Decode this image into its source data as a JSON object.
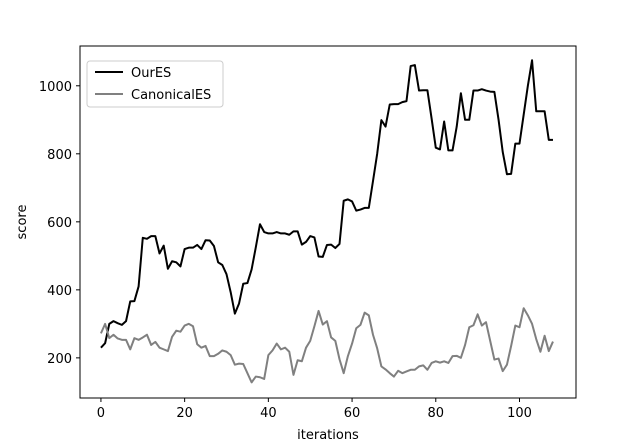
{
  "chart_data": {
    "type": "line",
    "xlabel": "iterations",
    "ylabel": "score",
    "xlim": [
      -5,
      113.5
    ],
    "ylim": [
      82,
      1117
    ],
    "xticks": [
      0,
      20,
      40,
      60,
      80,
      100
    ],
    "yticks": [
      200,
      400,
      600,
      800,
      1000
    ],
    "grid": false,
    "legend_position": "upper-left",
    "series": [
      {
        "name": "OurES",
        "color": "#000000",
        "points": [
          [
            0,
            230
          ],
          [
            1,
            243
          ],
          [
            2,
            300
          ],
          [
            3,
            308
          ],
          [
            4,
            302
          ],
          [
            5,
            297
          ],
          [
            6,
            308
          ],
          [
            7,
            366
          ],
          [
            8,
            367
          ],
          [
            9,
            410
          ],
          [
            10,
            553
          ],
          [
            11,
            550
          ],
          [
            12,
            558
          ],
          [
            13,
            558
          ],
          [
            14,
            507
          ],
          [
            15,
            530
          ],
          [
            16,
            462
          ],
          [
            17,
            484
          ],
          [
            18,
            481
          ],
          [
            19,
            469
          ],
          [
            20,
            520
          ],
          [
            21,
            524
          ],
          [
            22,
            524
          ],
          [
            23,
            532
          ],
          [
            24,
            520
          ],
          [
            25,
            546
          ],
          [
            26,
            545
          ],
          [
            27,
            529
          ],
          [
            28,
            481
          ],
          [
            29,
            473
          ],
          [
            30,
            446
          ],
          [
            31,
            393
          ],
          [
            32,
            330
          ],
          [
            33,
            360
          ],
          [
            34,
            418
          ],
          [
            35,
            420
          ],
          [
            36,
            460
          ],
          [
            37,
            525
          ],
          [
            38,
            593
          ],
          [
            39,
            570
          ],
          [
            40,
            566
          ],
          [
            41,
            566
          ],
          [
            42,
            570
          ],
          [
            43,
            566
          ],
          [
            44,
            566
          ],
          [
            45,
            562
          ],
          [
            46,
            572
          ],
          [
            47,
            572
          ],
          [
            48,
            533
          ],
          [
            49,
            541
          ],
          [
            50,
            558
          ],
          [
            51,
            554
          ],
          [
            52,
            498
          ],
          [
            53,
            497
          ],
          [
            54,
            532
          ],
          [
            55,
            533
          ],
          [
            56,
            523
          ],
          [
            57,
            535
          ],
          [
            58,
            662
          ],
          [
            59,
            666
          ],
          [
            60,
            660
          ],
          [
            61,
            633
          ],
          [
            62,
            636
          ],
          [
            63,
            641
          ],
          [
            64,
            641
          ],
          [
            65,
            720
          ],
          [
            66,
            800
          ],
          [
            67,
            899
          ],
          [
            68,
            880
          ],
          [
            69,
            945
          ],
          [
            70,
            946
          ],
          [
            71,
            946
          ],
          [
            72,
            952
          ],
          [
            73,
            955
          ],
          [
            74,
            1058
          ],
          [
            75,
            1061
          ],
          [
            76,
            986
          ],
          [
            77,
            987
          ],
          [
            78,
            987
          ],
          [
            79,
            904
          ],
          [
            80,
            818
          ],
          [
            81,
            813
          ],
          [
            82,
            895
          ],
          [
            83,
            810
          ],
          [
            84,
            810
          ],
          [
            85,
            880
          ],
          [
            86,
            978
          ],
          [
            87,
            900
          ],
          [
            88,
            900
          ],
          [
            89,
            986
          ],
          [
            90,
            986
          ],
          [
            91,
            990
          ],
          [
            92,
            986
          ],
          [
            93,
            983
          ],
          [
            94,
            982
          ],
          [
            95,
            900
          ],
          [
            96,
            805
          ],
          [
            97,
            740
          ],
          [
            98,
            741
          ],
          [
            99,
            830
          ],
          [
            100,
            830
          ],
          [
            101,
            915
          ],
          [
            102,
            1000
          ],
          [
            103,
            1075
          ],
          [
            104,
            925
          ],
          [
            105,
            925
          ],
          [
            106,
            925
          ],
          [
            107,
            841
          ],
          [
            108,
            841
          ]
        ]
      },
      {
        "name": "CanonicalES",
        "color": "#808080",
        "points": [
          [
            0,
            272
          ],
          [
            1,
            300
          ],
          [
            2,
            258
          ],
          [
            3,
            268
          ],
          [
            4,
            257
          ],
          [
            5,
            253
          ],
          [
            6,
            253
          ],
          [
            7,
            225
          ],
          [
            8,
            258
          ],
          [
            9,
            253
          ],
          [
            10,
            260
          ],
          [
            11,
            268
          ],
          [
            12,
            238
          ],
          [
            13,
            247
          ],
          [
            14,
            230
          ],
          [
            15,
            225
          ],
          [
            16,
            220
          ],
          [
            17,
            262
          ],
          [
            18,
            280
          ],
          [
            19,
            277
          ],
          [
            20,
            295
          ],
          [
            21,
            300
          ],
          [
            22,
            293
          ],
          [
            23,
            240
          ],
          [
            24,
            230
          ],
          [
            25,
            235
          ],
          [
            26,
            205
          ],
          [
            27,
            205
          ],
          [
            28,
            212
          ],
          [
            29,
            222
          ],
          [
            30,
            218
          ],
          [
            31,
            208
          ],
          [
            32,
            180
          ],
          [
            33,
            183
          ],
          [
            34,
            182
          ],
          [
            35,
            155
          ],
          [
            36,
            128
          ],
          [
            37,
            145
          ],
          [
            38,
            143
          ],
          [
            39,
            138
          ],
          [
            40,
            208
          ],
          [
            41,
            222
          ],
          [
            42,
            242
          ],
          [
            43,
            225
          ],
          [
            44,
            230
          ],
          [
            45,
            218
          ],
          [
            46,
            150
          ],
          [
            47,
            193
          ],
          [
            48,
            190
          ],
          [
            49,
            230
          ],
          [
            50,
            250
          ],
          [
            51,
            293
          ],
          [
            52,
            338
          ],
          [
            53,
            298
          ],
          [
            54,
            308
          ],
          [
            55,
            260
          ],
          [
            56,
            250
          ],
          [
            57,
            196
          ],
          [
            58,
            155
          ],
          [
            59,
            205
          ],
          [
            60,
            242
          ],
          [
            61,
            287
          ],
          [
            62,
            297
          ],
          [
            63,
            333
          ],
          [
            64,
            325
          ],
          [
            65,
            268
          ],
          [
            66,
            228
          ],
          [
            67,
            175
          ],
          [
            68,
            166
          ],
          [
            69,
            155
          ],
          [
            70,
            145
          ],
          [
            71,
            162
          ],
          [
            72,
            155
          ],
          [
            73,
            160
          ],
          [
            74,
            165
          ],
          [
            75,
            165
          ],
          [
            76,
            175
          ],
          [
            77,
            178
          ],
          [
            78,
            165
          ],
          [
            79,
            185
          ],
          [
            80,
            190
          ],
          [
            81,
            186
          ],
          [
            82,
            190
          ],
          [
            83,
            185
          ],
          [
            84,
            205
          ],
          [
            85,
            206
          ],
          [
            86,
            200
          ],
          [
            87,
            238
          ],
          [
            88,
            290
          ],
          [
            89,
            296
          ],
          [
            90,
            328
          ],
          [
            91,
            295
          ],
          [
            92,
            305
          ],
          [
            93,
            250
          ],
          [
            94,
            195
          ],
          [
            95,
            198
          ],
          [
            96,
            161
          ],
          [
            97,
            180
          ],
          [
            98,
            235
          ],
          [
            99,
            295
          ],
          [
            100,
            290
          ],
          [
            101,
            346
          ],
          [
            102,
            325
          ],
          [
            103,
            300
          ],
          [
            104,
            255
          ],
          [
            105,
            218
          ],
          [
            106,
            265
          ],
          [
            107,
            220
          ],
          [
            108,
            248
          ]
        ]
      }
    ]
  }
}
